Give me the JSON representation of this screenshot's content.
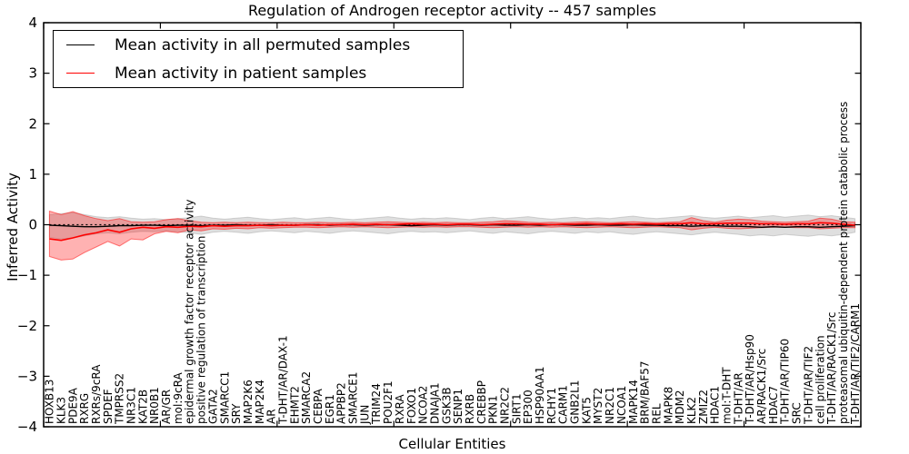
{
  "title": "Regulation of Androgen receptor activity -- 457 samples",
  "legend": {
    "items": [
      {
        "label": "Mean activity in all permuted samples",
        "color": "#000000"
      },
      {
        "label": "Mean activity in patient samples",
        "color": "#ff0000"
      }
    ]
  },
  "chart_data": {
    "type": "line",
    "title": "Regulation of Androgen receptor activity -- 457 samples",
    "xlabel": "Cellular Entities",
    "ylabel": "Inferred Activity",
    "ylim": [
      -4,
      4
    ],
    "ytick_values": [
      4,
      3,
      2,
      1,
      0,
      -1,
      -2,
      -3,
      -4
    ],
    "ytick_labels": [
      "4",
      "3",
      "2",
      "1",
      "0",
      "−1",
      "−2",
      "−3",
      "−4"
    ],
    "xtick_every": 10,
    "grid": false,
    "legend_position": "upper left",
    "zero_line": 0,
    "categories": [
      "HOXB13",
      "KLK3",
      "PDE9A",
      "RXRG",
      "RXRs/9cRA",
      "SPDEF",
      "TMPRSS2",
      "NR3C1",
      "KAT2B",
      "NR0B1",
      "AR/GR",
      "mol:9cRA",
      "epidermal growth factor receptor activity",
      "positive regulation of transcription",
      "GATA2",
      "SMARCC1",
      "SRY",
      "MAP2K6",
      "MAP2K4",
      "AR",
      "T-DHT/AR/DAX-1",
      "EHMT2",
      "SMARCA2",
      "CEBPA",
      "EGR1",
      "APPBP2",
      "SMARCE1",
      "JUN",
      "TRIM24",
      "POU2F1",
      "RXRA",
      "FOXO1",
      "NCOA2",
      "DNAJA1",
      "GSK3B",
      "SENP1",
      "RXRB",
      "CREBBP",
      "PKN1",
      "NR2C2",
      "SIRT1",
      "EP300",
      "HSP90AA1",
      "RCHY1",
      "CARM1",
      "GNB2L1",
      "KAT5",
      "MYST2",
      "NR2C1",
      "NCOA1",
      "MAPK14",
      "BRM/BAF57",
      "REL",
      "MAPK8",
      "MDM2",
      "KLK2",
      "ZMIZ2",
      "HDAC1",
      "mol:T-DHT",
      "T-DHT/AR",
      "T-DHT/AR/Hsp90",
      "AR/RACK1/Src",
      "HDAC7",
      "T-DHT/AR/TIP60",
      "SRC",
      "T-DHT/AR/TIF2",
      "cell proliferation",
      "T-DHT/AR/RACK1/Src",
      "proteasomal ubiquitin-dependent protein catabolic process",
      "T-DHT/AR/TIF2/CARM1"
    ],
    "series": [
      {
        "name": "Mean activity in all permuted samples",
        "color": "#000000",
        "width": 1.4,
        "values": [
          -0.01,
          -0.02,
          -0.03,
          -0.04,
          -0.04,
          -0.03,
          -0.02,
          -0.02,
          -0.01,
          -0.01,
          -0.02,
          -0.01,
          -0.01,
          -0.02,
          -0.01,
          -0.01,
          0.0,
          -0.01,
          -0.01,
          0.0,
          -0.01,
          -0.01,
          0.0,
          0.0,
          -0.01,
          0.0,
          0.0,
          -0.01,
          0.0,
          0.0,
          -0.01,
          -0.02,
          -0.01,
          0.0,
          -0.01,
          0.0,
          0.0,
          -0.01,
          0.0,
          -0.01,
          -0.01,
          0.0,
          -0.01,
          0.0,
          0.0,
          -0.01,
          -0.01,
          0.0,
          -0.01,
          -0.01,
          0.0,
          -0.01,
          -0.01,
          -0.02,
          -0.02,
          -0.03,
          -0.02,
          -0.02,
          -0.03,
          -0.03,
          -0.04,
          -0.05,
          -0.04,
          -0.05,
          -0.04,
          -0.04,
          -0.05,
          -0.04,
          -0.03,
          -0.02
        ]
      },
      {
        "name": "Mean activity in patient samples",
        "color": "#ff0000",
        "width": 1.6,
        "values": [
          -0.28,
          -0.31,
          -0.26,
          -0.2,
          -0.16,
          -0.1,
          -0.15,
          -0.08,
          -0.05,
          -0.07,
          -0.04,
          -0.05,
          -0.03,
          -0.04,
          -0.02,
          -0.03,
          -0.02,
          -0.02,
          -0.01,
          -0.02,
          -0.01,
          -0.01,
          0.0,
          -0.01,
          0.0,
          0.0,
          0.01,
          0.0,
          0.01,
          0.0,
          0.01,
          0.02,
          0.01,
          0.01,
          0.0,
          0.01,
          0.01,
          0.0,
          0.01,
          0.02,
          0.02,
          0.01,
          0.01,
          0.0,
          0.01,
          0.01,
          0.02,
          0.01,
          0.01,
          0.02,
          0.01,
          0.02,
          0.01,
          0.02,
          0.02,
          0.04,
          0.02,
          0.02,
          0.03,
          0.03,
          0.03,
          0.02,
          0.02,
          0.01,
          0.02,
          0.02,
          0.04,
          0.03,
          0.01,
          -0.01
        ]
      }
    ],
    "bands": [
      {
        "name": "permuted samples range",
        "fill": "#b0b0b0",
        "fill_opacity": 0.4,
        "edge": "#999999",
        "edge_opacity": 0.4,
        "upper": [
          0.2,
          0.22,
          0.24,
          0.2,
          0.16,
          0.14,
          0.16,
          0.13,
          0.11,
          0.12,
          0.1,
          0.12,
          0.14,
          0.17,
          0.13,
          0.11,
          0.13,
          0.15,
          0.12,
          0.1,
          0.12,
          0.14,
          0.11,
          0.13,
          0.15,
          0.12,
          0.1,
          0.12,
          0.14,
          0.16,
          0.13,
          0.11,
          0.13,
          0.12,
          0.14,
          0.12,
          0.1,
          0.13,
          0.15,
          0.12,
          0.14,
          0.16,
          0.13,
          0.11,
          0.13,
          0.15,
          0.12,
          0.14,
          0.12,
          0.15,
          0.17,
          0.14,
          0.12,
          0.14,
          0.16,
          0.18,
          0.15,
          0.13,
          0.15,
          0.17,
          0.14,
          0.16,
          0.18,
          0.15,
          0.17,
          0.19,
          0.16,
          0.18,
          0.15,
          0.12
        ],
        "lower": [
          -0.25,
          -0.28,
          -0.26,
          -0.22,
          -0.18,
          -0.16,
          -0.18,
          -0.15,
          -0.13,
          -0.14,
          -0.12,
          -0.14,
          -0.16,
          -0.19,
          -0.15,
          -0.13,
          -0.15,
          -0.17,
          -0.14,
          -0.12,
          -0.14,
          -0.16,
          -0.13,
          -0.15,
          -0.17,
          -0.14,
          -0.12,
          -0.14,
          -0.16,
          -0.18,
          -0.15,
          -0.13,
          -0.15,
          -0.14,
          -0.16,
          -0.14,
          -0.12,
          -0.15,
          -0.17,
          -0.14,
          -0.16,
          -0.18,
          -0.15,
          -0.13,
          -0.15,
          -0.17,
          -0.14,
          -0.16,
          -0.14,
          -0.17,
          -0.19,
          -0.16,
          -0.14,
          -0.16,
          -0.18,
          -0.2,
          -0.17,
          -0.15,
          -0.17,
          -0.19,
          -0.22,
          -0.2,
          -0.22,
          -0.19,
          -0.21,
          -0.23,
          -0.2,
          -0.22,
          -0.19,
          -0.15
        ]
      },
      {
        "name": "patient samples range",
        "fill": "#ff0000",
        "fill_opacity": 0.3,
        "edge": "#ff0000",
        "edge_opacity": 0.5,
        "upper": [
          0.27,
          0.2,
          0.26,
          0.18,
          0.12,
          0.08,
          0.12,
          0.06,
          0.05,
          0.06,
          0.1,
          0.12,
          0.08,
          0.05,
          0.04,
          0.05,
          0.04,
          0.05,
          0.04,
          0.04,
          0.05,
          0.04,
          0.04,
          0.05,
          0.04,
          0.04,
          0.05,
          0.04,
          0.05,
          0.06,
          0.05,
          0.04,
          0.05,
          0.04,
          0.05,
          0.04,
          0.04,
          0.05,
          0.06,
          0.08,
          0.07,
          0.05,
          0.04,
          0.05,
          0.04,
          0.05,
          0.06,
          0.05,
          0.04,
          0.05,
          0.06,
          0.05,
          0.04,
          0.05,
          0.06,
          0.14,
          0.08,
          0.05,
          0.09,
          0.11,
          0.1,
          0.07,
          0.06,
          0.05,
          0.06,
          0.07,
          0.13,
          0.11,
          0.06,
          0.05
        ],
        "lower": [
          -0.63,
          -0.7,
          -0.68,
          -0.55,
          -0.44,
          -0.33,
          -0.42,
          -0.28,
          -0.3,
          -0.18,
          -0.13,
          -0.16,
          -0.1,
          -0.12,
          -0.08,
          -0.09,
          -0.07,
          -0.08,
          -0.06,
          -0.07,
          -0.06,
          -0.05,
          -0.05,
          -0.06,
          -0.05,
          -0.04,
          -0.05,
          -0.04,
          -0.05,
          -0.06,
          -0.05,
          -0.04,
          -0.05,
          -0.04,
          -0.05,
          -0.04,
          -0.04,
          -0.05,
          -0.06,
          -0.05,
          -0.04,
          -0.05,
          -0.04,
          -0.05,
          -0.04,
          -0.05,
          -0.06,
          -0.05,
          -0.04,
          -0.05,
          -0.06,
          -0.05,
          -0.04,
          -0.05,
          -0.06,
          -0.1,
          -0.07,
          -0.05,
          -0.07,
          -0.08,
          -0.07,
          -0.06,
          -0.05,
          -0.05,
          -0.06,
          -0.06,
          -0.08,
          -0.07,
          -0.06,
          -0.06
        ]
      }
    ]
  }
}
